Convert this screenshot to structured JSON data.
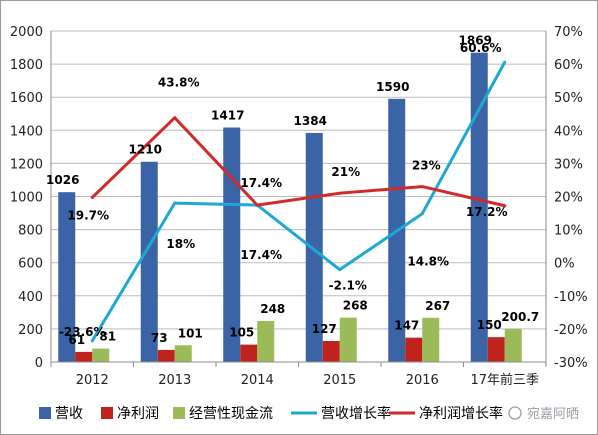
{
  "chart_data": {
    "type": "bar",
    "categories": [
      "2012",
      "2013",
      "2014",
      "2015",
      "2016",
      "17年前三季"
    ],
    "y_left": {
      "min": 0,
      "max": 2000,
      "step": 200
    },
    "y_right": {
      "min": -30,
      "max": 70,
      "step": 10,
      "unit": "%"
    },
    "grid": true,
    "legend_position": "bottom",
    "series": [
      {
        "name": "营收",
        "kind": "bar",
        "axis": "left",
        "color": "#3b64a6",
        "values": [
          1026,
          1210,
          1417,
          1384,
          1590,
          1869
        ],
        "labels": [
          "1026",
          "1210",
          "1417",
          "1384",
          "1590",
          "1869"
        ]
      },
      {
        "name": "净利润",
        "kind": "bar",
        "axis": "left",
        "color": "#c0231e",
        "values": [
          61,
          73,
          105,
          127,
          147,
          150
        ],
        "labels": [
          "61",
          "73",
          "105",
          "127",
          "147",
          "150"
        ]
      },
      {
        "name": "经营性现金流",
        "kind": "bar",
        "axis": "left",
        "color": "#9bbb59",
        "values": [
          81,
          101,
          248,
          268,
          267,
          200.7
        ],
        "labels": [
          "81",
          "101",
          "248",
          "268",
          "267",
          "200.7"
        ]
      },
      {
        "name": "营收增长率",
        "kind": "line",
        "axis": "right",
        "color": "#1ea8d6",
        "values": [
          -23.6,
          18,
          17.4,
          -2.1,
          14.8,
          60.6
        ],
        "labels": [
          "-23.6%",
          "18%",
          "17.4%",
          "-2.1%",
          "14.8%",
          "60.6%"
        ]
      },
      {
        "name": "净利润增长率",
        "kind": "line",
        "axis": "right",
        "color": "#d12a2a",
        "values": [
          19.7,
          43.8,
          17.4,
          21,
          23,
          17.2
        ],
        "labels": [
          "19.7%",
          "43.8%",
          "17.4%",
          "21%",
          "23%",
          "17.2%"
        ]
      }
    ]
  },
  "watermark": "宛嘉阿晒"
}
